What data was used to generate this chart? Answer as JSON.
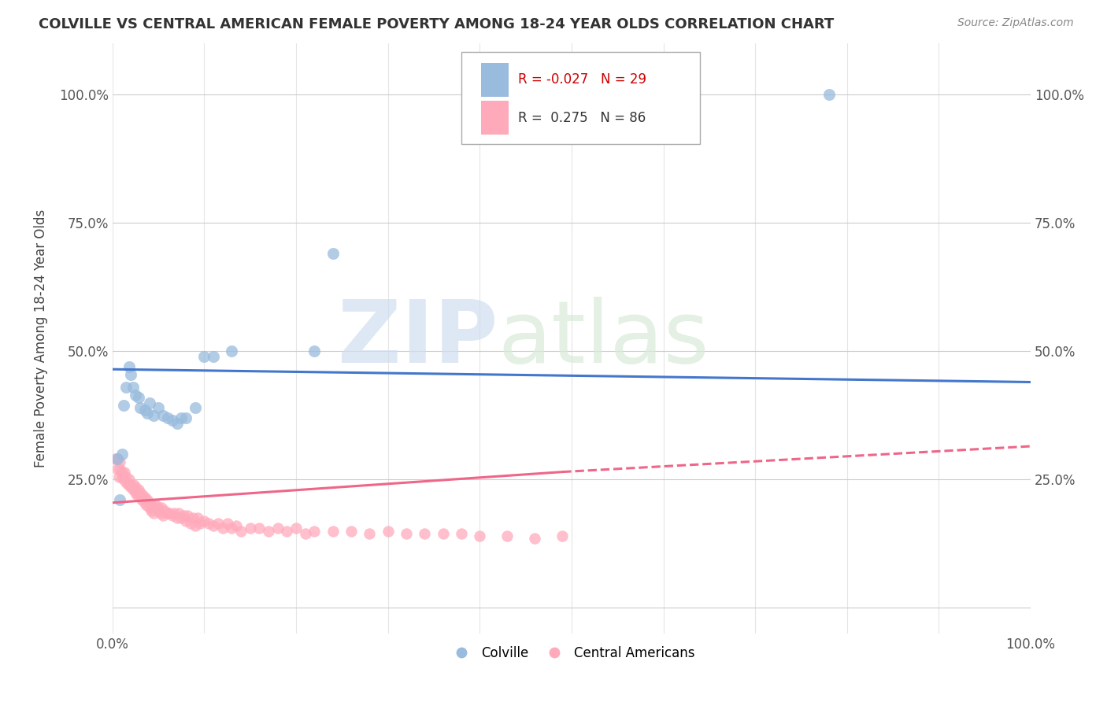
{
  "title": "COLVILLE VS CENTRAL AMERICAN FEMALE POVERTY AMONG 18-24 YEAR OLDS CORRELATION CHART",
  "source": "Source: ZipAtlas.com",
  "ylabel": "Female Poverty Among 18-24 Year Olds",
  "watermark_zip": "ZIP",
  "watermark_atlas": "atlas",
  "legend_colville_R": "-0.027",
  "legend_colville_N": "29",
  "legend_central_R": "0.275",
  "legend_central_N": "86",
  "colville_color": "#99bbdd",
  "central_color": "#ffaabb",
  "colville_trend_color": "#4477cc",
  "central_trend_color": "#ee6688",
  "background_color": "#ffffff",
  "colville_x": [
    0.005,
    0.008,
    0.01,
    0.012,
    0.015,
    0.018,
    0.02,
    0.022,
    0.025,
    0.028,
    0.03,
    0.035,
    0.038,
    0.04,
    0.045,
    0.05,
    0.055,
    0.06,
    0.065,
    0.07,
    0.075,
    0.08,
    0.09,
    0.1,
    0.11,
    0.13,
    0.22,
    0.24,
    0.78
  ],
  "colville_y": [
    0.29,
    0.21,
    0.3,
    0.395,
    0.43,
    0.47,
    0.455,
    0.43,
    0.415,
    0.41,
    0.39,
    0.385,
    0.38,
    0.4,
    0.375,
    0.39,
    0.375,
    0.37,
    0.365,
    0.36,
    0.37,
    0.37,
    0.39,
    0.49,
    0.49,
    0.5,
    0.5,
    0.69,
    1.0
  ],
  "central_x": [
    0.003,
    0.005,
    0.007,
    0.008,
    0.01,
    0.01,
    0.012,
    0.013,
    0.015,
    0.015,
    0.017,
    0.018,
    0.02,
    0.02,
    0.022,
    0.023,
    0.025,
    0.025,
    0.027,
    0.028,
    0.03,
    0.03,
    0.032,
    0.033,
    0.035,
    0.035,
    0.037,
    0.038,
    0.04,
    0.04,
    0.042,
    0.043,
    0.045,
    0.047,
    0.05,
    0.05,
    0.052,
    0.053,
    0.055,
    0.057,
    0.06,
    0.062,
    0.065,
    0.067,
    0.07,
    0.072,
    0.075,
    0.077,
    0.08,
    0.082,
    0.085,
    0.088,
    0.09,
    0.093,
    0.095,
    0.1,
    0.105,
    0.11,
    0.115,
    0.12,
    0.125,
    0.13,
    0.135,
    0.14,
    0.15,
    0.16,
    0.17,
    0.18,
    0.19,
    0.2,
    0.21,
    0.22,
    0.24,
    0.26,
    0.28,
    0.3,
    0.32,
    0.34,
    0.36,
    0.38,
    0.4,
    0.43,
    0.46,
    0.49,
    0.005,
    0.008
  ],
  "central_y": [
    0.29,
    0.27,
    0.255,
    0.27,
    0.255,
    0.265,
    0.25,
    0.265,
    0.245,
    0.255,
    0.24,
    0.25,
    0.24,
    0.235,
    0.23,
    0.24,
    0.225,
    0.235,
    0.22,
    0.23,
    0.215,
    0.225,
    0.21,
    0.22,
    0.205,
    0.215,
    0.2,
    0.21,
    0.195,
    0.205,
    0.19,
    0.2,
    0.185,
    0.2,
    0.195,
    0.19,
    0.185,
    0.195,
    0.18,
    0.19,
    0.185,
    0.185,
    0.18,
    0.185,
    0.175,
    0.185,
    0.175,
    0.18,
    0.17,
    0.18,
    0.165,
    0.175,
    0.16,
    0.175,
    0.165,
    0.17,
    0.165,
    0.16,
    0.165,
    0.155,
    0.165,
    0.155,
    0.16,
    0.15,
    0.155,
    0.155,
    0.15,
    0.155,
    0.15,
    0.155,
    0.145,
    0.15,
    0.15,
    0.15,
    0.145,
    0.15,
    0.145,
    0.145,
    0.145,
    0.145,
    0.14,
    0.14,
    0.135,
    0.14,
    0.29,
    0.285
  ],
  "xlim": [
    0.0,
    1.0
  ],
  "ylim": [
    -0.05,
    1.1
  ],
  "xtick_positions": [
    0.0,
    0.1,
    0.2,
    0.3,
    0.4,
    0.5,
    0.6,
    0.7,
    0.8,
    0.9,
    1.0
  ],
  "ytick_positions": [
    0.0,
    0.25,
    0.5,
    0.75,
    1.0
  ],
  "ytick_labels_left": [
    "",
    "25.0%",
    "50.0%",
    "75.0%",
    "100.0%"
  ],
  "ytick_labels_right": [
    "",
    "25.0%",
    "50.0%",
    "75.0%",
    "100.0%"
  ],
  "xtick_labels": [
    "0.0%",
    "",
    "",
    "",
    "",
    "",
    "",
    "",
    "",
    "",
    "100.0%"
  ]
}
